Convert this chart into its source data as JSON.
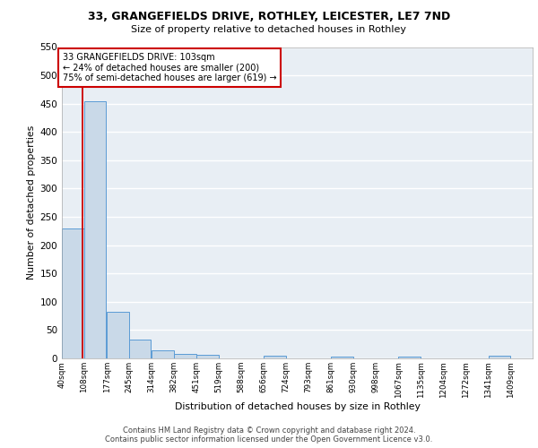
{
  "title_line1": "33, GRANGEFIELDS DRIVE, ROTHLEY, LEICESTER, LE7 7ND",
  "title_line2": "Size of property relative to detached houses in Rothley",
  "xlabel": "Distribution of detached houses by size in Rothley",
  "ylabel": "Number of detached properties",
  "bar_edges": [
    40,
    108,
    177,
    245,
    314,
    382,
    451,
    519,
    588,
    656,
    724,
    793,
    861,
    930,
    998,
    1067,
    1135,
    1204,
    1272,
    1341,
    1409
  ],
  "bar_heights": [
    230,
    455,
    83,
    33,
    14,
    8,
    6,
    0,
    0,
    5,
    0,
    0,
    3,
    0,
    0,
    3,
    0,
    0,
    0,
    5,
    0
  ],
  "bar_color": "#c9d9e8",
  "bar_edge_color": "#5b9bd5",
  "property_size": 103,
  "annotation_text": "33 GRANGEFIELDS DRIVE: 103sqm\n← 24% of detached houses are smaller (200)\n75% of semi-detached houses are larger (619) →",
  "annotation_box_color": "#cc0000",
  "vline_color": "#cc0000",
  "ylim": [
    0,
    550
  ],
  "yticks": [
    0,
    50,
    100,
    150,
    200,
    250,
    300,
    350,
    400,
    450,
    500,
    550
  ],
  "background_color": "#e8eef4",
  "grid_color": "#ffffff",
  "fig_background": "#ffffff",
  "footer_line1": "Contains HM Land Registry data © Crown copyright and database right 2024.",
  "footer_line2": "Contains public sector information licensed under the Open Government Licence v3.0.",
  "tick_labels": [
    "40sqm",
    "108sqm",
    "177sqm",
    "245sqm",
    "314sqm",
    "382sqm",
    "451sqm",
    "519sqm",
    "588sqm",
    "656sqm",
    "724sqm",
    "793sqm",
    "861sqm",
    "930sqm",
    "998sqm",
    "1067sqm",
    "1135sqm",
    "1204sqm",
    "1272sqm",
    "1341sqm",
    "1409sqm"
  ]
}
